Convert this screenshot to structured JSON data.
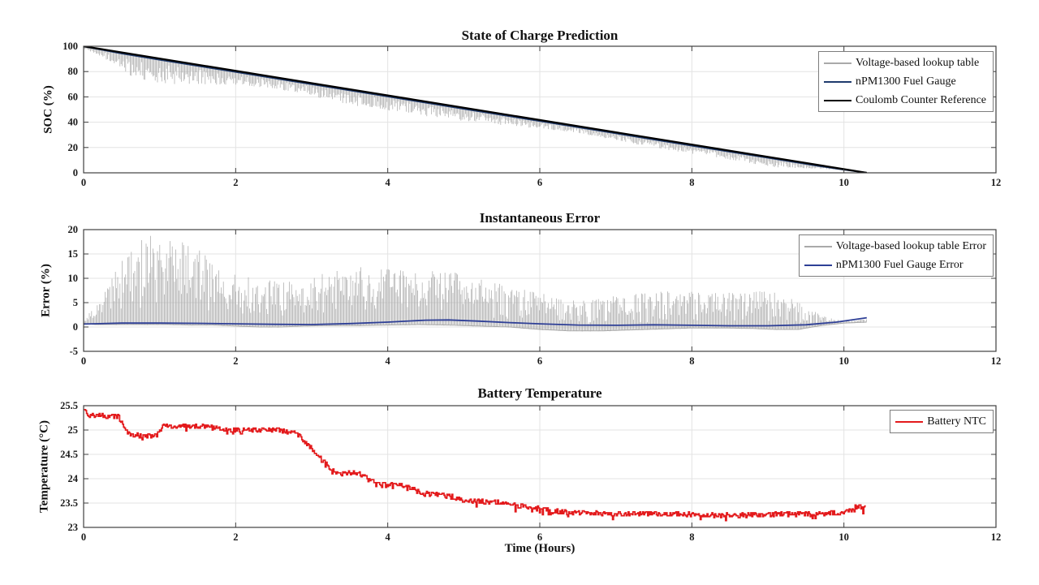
{
  "figure": {
    "xlabel": "Time (Hours)",
    "background": "#ffffff",
    "axis_color": "#3f3f3f",
    "grid_color": "#e3e3e3",
    "tick_label_color": "#1a1a1a"
  },
  "chart_data": [
    {
      "id": "soc",
      "type": "line",
      "title": "State of Charge Prediction",
      "ylabel": "SOC (%)",
      "xlim": [
        0,
        12
      ],
      "ylim": [
        0,
        100
      ],
      "xticks": [
        0,
        2,
        4,
        6,
        8,
        10,
        12
      ],
      "yticks": [
        0,
        20,
        40,
        60,
        80,
        100
      ],
      "grid": true,
      "legend": {
        "position": "top-right",
        "entries": [
          {
            "label": "Voltage-based lookup table",
            "color": "#a9a9a9"
          },
          {
            "label": "nPM1300 Fuel Gauge",
            "color": "#1f3a6d"
          },
          {
            "label": "Coulomb Counter Reference",
            "color": "#000000"
          }
        ]
      },
      "series": [
        {
          "name": "Voltage-based lookup table",
          "type": "noisy_band",
          "color": "#a9a9a9",
          "baseline": "top",
          "x": [
            0,
            0.15,
            0.3,
            0.5,
            0.7,
            0.9,
            1.1,
            1.4,
            1.7,
            2.0,
            2.3,
            2.6,
            2.9,
            3.2,
            3.6,
            4.0,
            4.4,
            4.8,
            5.2,
            5.6,
            6.0,
            6.4,
            6.8,
            7.2,
            7.6,
            8.0,
            8.4,
            8.8,
            9.1,
            9.4,
            9.7,
            10.0,
            10.3
          ],
          "top": [
            99.2,
            97.7,
            96.3,
            94.3,
            92.4,
            90.5,
            88.5,
            85.6,
            82.7,
            79.8,
            76.9,
            74.0,
            71.0,
            68.1,
            64.2,
            60.4,
            56.5,
            52.6,
            48.7,
            44.8,
            40.9,
            37.1,
            33.2,
            29.3,
            25.4,
            21.5,
            17.6,
            13.8,
            10.9,
            7.9,
            5.0,
            2.1,
            0.3
          ],
          "bottom": [
            98.0,
            94.5,
            89.1,
            81.2,
            73.7,
            71.8,
            70.3,
            69.4,
            69.5,
            69.6,
            67.7,
            65.3,
            62.8,
            57.4,
            52.5,
            49.2,
            45.3,
            41.9,
            39.5,
            37.1,
            34.7,
            32.4,
            28.0,
            23.3,
            18.9,
            14.8,
            11.4,
            7.3,
            4.2,
            3.7,
            3.3,
            1.7,
            0.1
          ]
        },
        {
          "name": "nPM1300 Fuel Gauge",
          "type": "line",
          "color": "#1f3a6d",
          "width": 2,
          "points": [
            [
              0,
              100
            ],
            [
              0.5,
              94.3
            ],
            [
              1,
              89.3
            ],
            [
              2,
              79.7
            ],
            [
              3,
              70.0
            ],
            [
              4,
              60.3
            ],
            [
              5,
              50.6
            ],
            [
              6,
              40.9
            ],
            [
              7,
              31.2
            ],
            [
              8,
              21.5
            ],
            [
              9,
              11.9
            ],
            [
              9.7,
              5.1
            ],
            [
              10.3,
              0
            ]
          ]
        },
        {
          "name": "Coulomb Counter Reference",
          "type": "line",
          "color": "#000000",
          "width": 2.2,
          "points": [
            [
              0,
              100
            ],
            [
              10.3,
              0
            ]
          ]
        }
      ]
    },
    {
      "id": "error",
      "type": "line",
      "title": "Instantaneous Error",
      "ylabel": "Error (%)",
      "xlim": [
        0,
        12
      ],
      "ylim": [
        -5,
        20
      ],
      "xticks": [
        0,
        2,
        4,
        6,
        8,
        10,
        12
      ],
      "yticks": [
        -5,
        0,
        5,
        10,
        15,
        20
      ],
      "grid": true,
      "legend": {
        "position": "top-right",
        "entries": [
          {
            "label": "Voltage-based lookup table Error",
            "color": "#a9a9a9"
          },
          {
            "label": "nPM1300 Fuel Gauge Error",
            "color": "#2e3f96"
          }
        ]
      },
      "series": [
        {
          "name": "Voltage-based lookup table Error",
          "type": "noisy_band",
          "color": "#a9a9a9",
          "baseline": "bottom",
          "x": [
            0,
            0.15,
            0.3,
            0.5,
            0.7,
            0.9,
            1.1,
            1.4,
            1.7,
            2.0,
            2.3,
            2.6,
            2.9,
            3.2,
            3.6,
            4.0,
            4.4,
            4.8,
            5.2,
            5.6,
            6.0,
            6.4,
            6.8,
            7.2,
            7.6,
            8.0,
            8.4,
            8.8,
            9.1,
            9.4,
            9.7,
            10.0,
            10.3
          ],
          "top": [
            2,
            4,
            8,
            14,
            18,
            19.5,
            19,
            17,
            14,
            11,
            10,
            9.5,
            9,
            11.5,
            12.5,
            12,
            12,
            11.5,
            10,
            8.5,
            7,
            5.5,
            6,
            6.8,
            7.3,
            7.5,
            7,
            7.3,
            7.5,
            5,
            2.5,
            1.2,
            1.6
          ],
          "bottom": [
            0.8,
            0.5,
            0.5,
            0.5,
            0.5,
            0.5,
            0.5,
            0.4,
            0.4,
            0.2,
            0,
            0,
            0.2,
            0.3,
            0.3,
            0.4,
            0.5,
            0.4,
            0.2,
            0,
            -0.5,
            -0.8,
            -0.8,
            -0.6,
            -0.4,
            -0.2,
            -0.2,
            -0.3,
            -0.5,
            -0.5,
            0.3,
            0.8,
            1.0
          ]
        },
        {
          "name": "nPM1300 Fuel Gauge Error",
          "type": "line",
          "color": "#2e3f96",
          "width": 1.8,
          "points": [
            [
              0,
              0.6
            ],
            [
              0.5,
              0.8
            ],
            [
              1,
              0.8
            ],
            [
              1.5,
              0.75
            ],
            [
              2,
              0.65
            ],
            [
              2.5,
              0.55
            ],
            [
              3,
              0.5
            ],
            [
              3.5,
              0.7
            ],
            [
              4,
              1.0
            ],
            [
              4.5,
              1.4
            ],
            [
              4.8,
              1.45
            ],
            [
              5.2,
              1.2
            ],
            [
              5.6,
              0.9
            ],
            [
              6,
              0.65
            ],
            [
              6.5,
              0.4
            ],
            [
              7,
              0.35
            ],
            [
              7.5,
              0.45
            ],
            [
              8,
              0.35
            ],
            [
              8.5,
              0.25
            ],
            [
              9,
              0.25
            ],
            [
              9.5,
              0.45
            ],
            [
              9.9,
              1.0
            ],
            [
              10.3,
              1.9
            ]
          ]
        }
      ]
    },
    {
      "id": "temperature",
      "type": "line",
      "title": "Battery Temperature",
      "ylabel": "Temperature (°C)",
      "xlim": [
        0,
        12
      ],
      "ylim": [
        23,
        25.5
      ],
      "xticks": [
        0,
        2,
        4,
        6,
        8,
        10,
        12
      ],
      "yticks": [
        23,
        23.5,
        24,
        24.5,
        25,
        25.5
      ],
      "grid": true,
      "legend": {
        "position": "top-right",
        "entries": [
          {
            "label": "Battery NTC",
            "color": "#e31a1c"
          }
        ]
      },
      "series": [
        {
          "name": "Battery NTC",
          "type": "noisy_line",
          "color": "#e31a1c",
          "noise": 0.05,
          "quantize": 0.02,
          "points": [
            [
              0,
              25.45
            ],
            [
              0.08,
              25.3
            ],
            [
              0.45,
              25.28
            ],
            [
              0.55,
              25.0
            ],
            [
              0.65,
              24.9
            ],
            [
              0.95,
              24.88
            ],
            [
              1.05,
              25.08
            ],
            [
              1.65,
              25.08
            ],
            [
              1.8,
              25.0
            ],
            [
              2.55,
              25.0
            ],
            [
              2.8,
              24.93
            ],
            [
              2.95,
              24.7
            ],
            [
              3.1,
              24.45
            ],
            [
              3.25,
              24.2
            ],
            [
              3.4,
              24.1
            ],
            [
              3.6,
              24.12
            ],
            [
              3.75,
              24.0
            ],
            [
              3.85,
              23.88
            ],
            [
              4.25,
              23.85
            ],
            [
              4.45,
              23.7
            ],
            [
              4.8,
              23.65
            ],
            [
              5.0,
              23.55
            ],
            [
              5.5,
              23.5
            ],
            [
              6.0,
              23.38
            ],
            [
              6.4,
              23.3
            ],
            [
              7.5,
              23.28
            ],
            [
              8.5,
              23.25
            ],
            [
              9.5,
              23.28
            ],
            [
              10.0,
              23.3
            ],
            [
              10.15,
              23.42
            ],
            [
              10.3,
              23.4
            ]
          ]
        }
      ]
    }
  ]
}
